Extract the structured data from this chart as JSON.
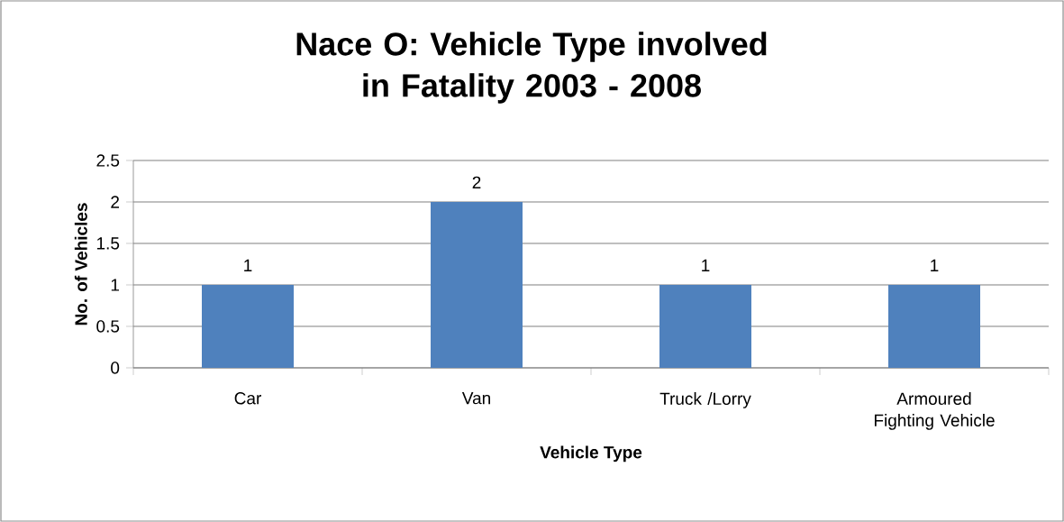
{
  "chart_data": {
    "type": "bar",
    "title": "Nace O: Vehicle Type involved in Fatality 2003 - 2008",
    "xlabel": "Vehicle Type",
    "ylabel": "No. of Vehicles",
    "categories": [
      "Car",
      "Van",
      "Truck /Lorry",
      "Armoured Fighting Vehicle"
    ],
    "values": [
      1,
      2,
      1,
      1
    ],
    "color": "#4f81bd",
    "ylim": [
      0,
      2.5
    ],
    "yticks": [
      0,
      0.5,
      1,
      1.5,
      2,
      2.5
    ],
    "grid": "y",
    "data_labels": true
  }
}
